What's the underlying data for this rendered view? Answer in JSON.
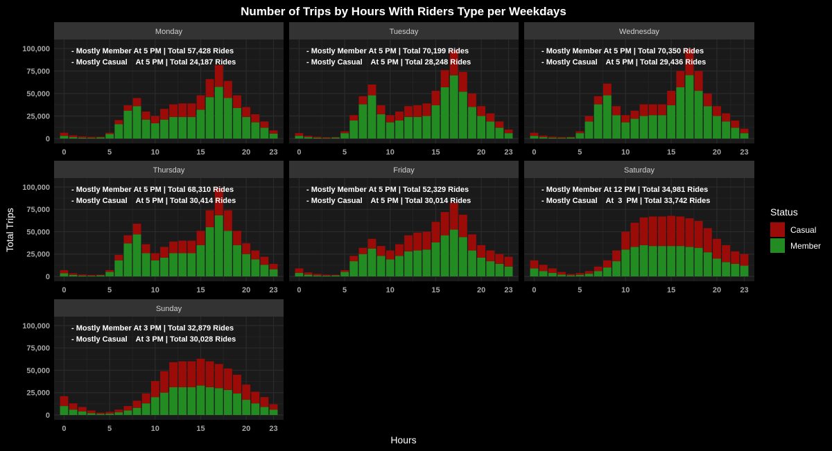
{
  "chart_data": {
    "type": "bar",
    "stacked": true,
    "title": "Number of Trips by Hours With Riders Type per Weekdays",
    "xlabel": "Hours",
    "ylabel": "Total Trips",
    "x_ticks": [
      0,
      5,
      10,
      15,
      20,
      23
    ],
    "y_ticks": [
      "0",
      "25,000",
      "50,000",
      "75,000",
      "100,000"
    ],
    "ylim": [
      0,
      110000
    ],
    "grid": true,
    "legend": {
      "title": "Status",
      "position": "right",
      "items": [
        {
          "name": "Casual",
          "color": "#9b0c08"
        },
        {
          "name": "Member",
          "color": "#228b22"
        }
      ]
    },
    "hours": [
      0,
      1,
      2,
      3,
      4,
      5,
      6,
      7,
      8,
      9,
      10,
      11,
      12,
      13,
      14,
      15,
      16,
      17,
      18,
      19,
      20,
      21,
      22,
      23
    ],
    "panels": [
      {
        "day": "Monday",
        "annotations": [
          "- Mostly Member At 5 PM | Total 57,428 Rides",
          "- Mostly Casual    At 5 PM | Total 24,187 Rides"
        ],
        "member": [
          3000,
          1500,
          900,
          700,
          1200,
          5000,
          16000,
          31000,
          36000,
          21000,
          17000,
          21000,
          24000,
          24000,
          24000,
          32000,
          46000,
          57428,
          45000,
          34000,
          24000,
          18000,
          12000,
          5500
        ],
        "casual": [
          3500,
          2000,
          1500,
          1200,
          800,
          1500,
          4500,
          6000,
          9000,
          9000,
          8000,
          12000,
          14000,
          15000,
          15000,
          16000,
          20000,
          24187,
          19000,
          14000,
          11000,
          9000,
          7000,
          3500
        ]
      },
      {
        "day": "Tuesday",
        "annotations": [
          "- Mostly Member At 5 PM | Total 70,199 Rides",
          "- Mostly Casual    At 5 PM | Total 28,248 Rides"
        ],
        "member": [
          3000,
          1500,
          800,
          600,
          1100,
          6000,
          20000,
          38000,
          48000,
          27000,
          18000,
          20000,
          24000,
          24000,
          25000,
          37000,
          57000,
          70199,
          52000,
          35000,
          25000,
          19000,
          12000,
          6000
        ],
        "casual": [
          3000,
          1500,
          1200,
          900,
          600,
          2000,
          6000,
          9000,
          12000,
          10000,
          8000,
          10000,
          12000,
          13000,
          14000,
          16000,
          19000,
          28248,
          22000,
          15000,
          11000,
          9000,
          7000,
          4000
        ]
      },
      {
        "day": "Wednesday",
        "annotations": [
          "- Mostly Member At 5 PM | Total 70,350 Rides",
          "- Mostly Casual    At 5 PM | Total 29,436 Rides"
        ],
        "member": [
          3000,
          1500,
          900,
          700,
          1200,
          6000,
          19000,
          38000,
          48000,
          26000,
          18000,
          22000,
          25000,
          26000,
          26000,
          37000,
          57000,
          70350,
          53000,
          36000,
          25000,
          19000,
          12000,
          6000
        ],
        "casual": [
          3500,
          1800,
          1200,
          1000,
          600,
          2000,
          6000,
          9000,
          13000,
          10000,
          8000,
          9000,
          13000,
          12000,
          12000,
          16000,
          18000,
          29436,
          22000,
          14000,
          11000,
          9000,
          8000,
          5000
        ]
      },
      {
        "day": "Thursday",
        "annotations": [
          "- Mostly Member At 5 PM | Total 68,310 Rides",
          "- Mostly Casual    At 5 PM | Total 30,414 Rides"
        ],
        "member": [
          3500,
          1700,
          900,
          700,
          1200,
          5000,
          18000,
          37000,
          47000,
          26000,
          18000,
          21000,
          26000,
          26000,
          26000,
          35000,
          55000,
          68310,
          51000,
          35000,
          25000,
          19000,
          13000,
          8000
        ],
        "casual": [
          3500,
          1800,
          1300,
          1000,
          700,
          2000,
          6000,
          9000,
          12000,
          10000,
          8000,
          12000,
          13000,
          14000,
          14000,
          16000,
          19000,
          30414,
          23000,
          16000,
          12000,
          10000,
          9000,
          6000
        ]
      },
      {
        "day": "Friday",
        "annotations": [
          "- Mostly Member At 5 PM | Total 52,329 Rides",
          "- Mostly Casual    At 5 PM | Total 30,014 Rides"
        ],
        "member": [
          4000,
          2000,
          1100,
          800,
          1100,
          5000,
          17000,
          25000,
          31000,
          23000,
          19000,
          23000,
          28000,
          29000,
          30000,
          38000,
          46000,
          52329,
          44000,
          29000,
          21000,
          17000,
          14000,
          11000
        ],
        "casual": [
          5000,
          2500,
          1700,
          1200,
          800,
          2000,
          6000,
          7000,
          11000,
          11000,
          10000,
          13000,
          18000,
          20000,
          20000,
          23000,
          26000,
          30014,
          25000,
          18000,
          14000,
          12000,
          11000,
          11000
        ]
      },
      {
        "day": "Saturday",
        "annotations": [
          "- Mostly Member At 12 PM | Total 34,981 Rides",
          "- Mostly Casual    At  3  PM | Total 33,742 Rides"
        ],
        "member": [
          9000,
          6000,
          4000,
          2000,
          1200,
          1800,
          3000,
          6000,
          10000,
          17000,
          30000,
          33000,
          34981,
          34000,
          34000,
          34000,
          34000,
          33000,
          32000,
          27000,
          20000,
          16000,
          14000,
          12000
        ],
        "casual": [
          9000,
          7000,
          5000,
          3000,
          1500,
          2000,
          3000,
          5000,
          8000,
          12000,
          20000,
          27000,
          31000,
          33000,
          33000,
          33742,
          33000,
          32000,
          30000,
          27000,
          22000,
          19000,
          14000,
          13000
        ]
      },
      {
        "day": "Sunday",
        "annotations": [
          "- Mostly Member At 3 PM | Total 32,879 Rides",
          "- Mostly Casual    At 3 PM | Total 30,028 Rides"
        ],
        "member": [
          10000,
          6000,
          4000,
          2000,
          1200,
          1500,
          3000,
          5000,
          8000,
          13000,
          20000,
          25000,
          31000,
          31000,
          31000,
          32879,
          31000,
          30000,
          28000,
          24000,
          17000,
          13000,
          9000,
          6000
        ],
        "casual": [
          11000,
          7000,
          5000,
          3000,
          1500,
          2000,
          3000,
          5000,
          8000,
          11000,
          18000,
          24000,
          28000,
          29000,
          29000,
          30028,
          29000,
          27000,
          24000,
          21000,
          17000,
          13000,
          11000,
          6000
        ]
      }
    ]
  }
}
